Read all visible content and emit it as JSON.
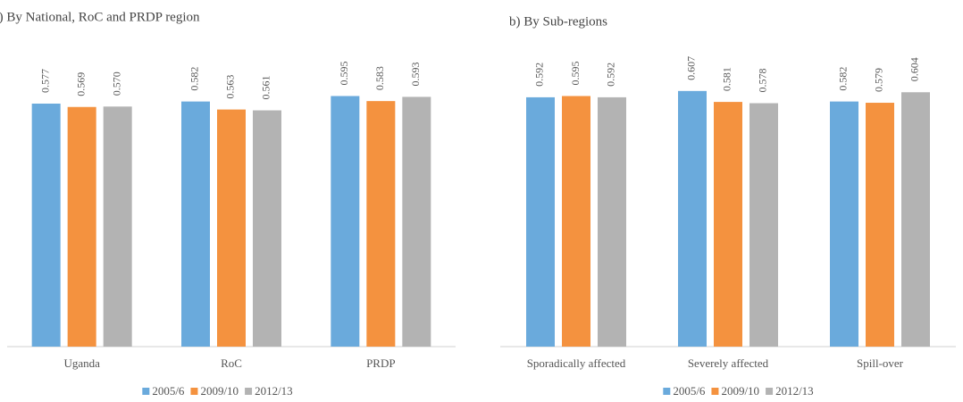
{
  "chart_data": [
    {
      "type": "bar",
      "title": "a) By National, RoC and PRDP region",
      "categories": [
        "Uganda",
        "RoC",
        "PRDP"
      ],
      "series": [
        {
          "name": "2005/6",
          "color": "#6aaadc",
          "values": [
            0.577,
            0.582,
            0.595
          ],
          "value_labels": [
            "0.577",
            "0.582",
            "0.595"
          ]
        },
        {
          "name": "2009/10",
          "color": "#f4923f",
          "values": [
            0.569,
            0.563,
            0.583
          ],
          "value_labels": [
            "0.569",
            "0.563",
            "0.583"
          ]
        },
        {
          "name": "2012/13",
          "color": "#b3b3b3",
          "values": [
            0.57,
            0.561,
            0.593
          ],
          "value_labels": [
            "0.570",
            "0.561",
            "0.593"
          ]
        }
      ],
      "ylim": [
        0,
        0.7
      ],
      "legend": "bottom"
    },
    {
      "type": "bar",
      "title": "b) By Sub-regions",
      "categories": [
        "Sporadically affected",
        "Severely affected",
        "Spill-over"
      ],
      "series": [
        {
          "name": "2005/6",
          "color": "#6aaadc",
          "values": [
            0.592,
            0.607,
            0.582
          ],
          "value_labels": [
            "0.592",
            "0.607",
            "0.582"
          ]
        },
        {
          "name": "2009/10",
          "color": "#f4923f",
          "values": [
            0.595,
            0.581,
            0.579
          ],
          "value_labels": [
            "0.595",
            "0.581",
            "0.579"
          ]
        },
        {
          "name": "2012/13",
          "color": "#b3b3b3",
          "values": [
            0.592,
            0.578,
            0.604
          ],
          "value_labels": [
            "0.592",
            "0.578",
            "0.604"
          ]
        }
      ],
      "ylim": [
        0,
        0.7
      ],
      "legend": "bottom"
    }
  ]
}
